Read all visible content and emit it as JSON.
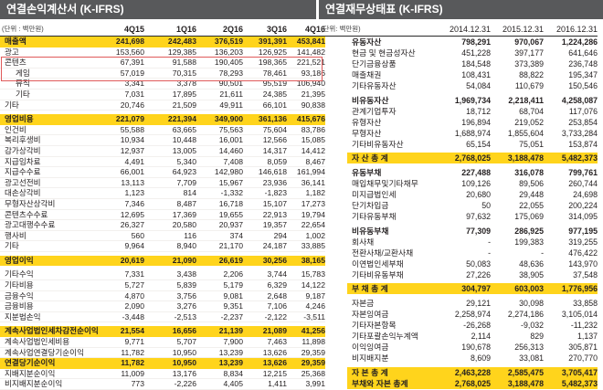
{
  "colors": {
    "header_bar": "#58595b",
    "highlight_row": "#ffd41c",
    "box_border": "#e05a5a",
    "text": "#231f20"
  },
  "income_statement": {
    "title": "연결손익계산서 (K-IFRS)",
    "unit": "(단위 : 백만원)",
    "columns": [
      "4Q15",
      "1Q16",
      "2Q16",
      "3Q16",
      "4Q16"
    ],
    "rows": [
      {
        "label": "매출액",
        "values": [
          "241,698",
          "242,483",
          "376,519",
          "391,391",
          "453,841"
        ],
        "highlight": true
      },
      {
        "label": "광고",
        "values": [
          "153,560",
          "129,385",
          "136,203",
          "126,925",
          "141,482"
        ]
      },
      {
        "label": "콘텐츠",
        "values": [
          "67,391",
          "91,588",
          "190,405",
          "198,365",
          "221,521"
        ],
        "boxed": true
      },
      {
        "label": "게임",
        "values": [
          "57,019",
          "70,315",
          "78,293",
          "78,461",
          "93,186"
        ],
        "indent": true,
        "boxed": true
      },
      {
        "label": "뮤직",
        "values": [
          "3,341",
          "3,378",
          "90,501",
          "95,519",
          "106,940"
        ],
        "indent": true
      },
      {
        "label": "기타",
        "values": [
          "7,031",
          "17,895",
          "21,611",
          "24,385",
          "21,395"
        ],
        "indent": true
      },
      {
        "label": "기타",
        "values": [
          "20,746",
          "21,509",
          "49,911",
          "66,101",
          "90,838"
        ]
      },
      {
        "label": "영업비용",
        "values": [
          "221,079",
          "221,394",
          "349,900",
          "361,136",
          "415,676"
        ],
        "highlight": true,
        "gap": true
      },
      {
        "label": "인건비",
        "values": [
          "55,588",
          "63,665",
          "75,563",
          "75,604",
          "83,786"
        ]
      },
      {
        "label": "복리후생비",
        "values": [
          "10,934",
          "10,448",
          "16,001",
          "12,566",
          "15,085"
        ]
      },
      {
        "label": "감가상각비",
        "values": [
          "12,937",
          "13,005",
          "14,460",
          "14,317",
          "14,412"
        ]
      },
      {
        "label": "지급임차료",
        "values": [
          "4,491",
          "5,340",
          "7,408",
          "8,059",
          "8,467"
        ]
      },
      {
        "label": "지급수수료",
        "values": [
          "66,001",
          "64,923",
          "142,980",
          "146,618",
          "161,994"
        ]
      },
      {
        "label": "광고선전비",
        "values": [
          "13,113",
          "7,709",
          "15,967",
          "23,936",
          "36,141"
        ]
      },
      {
        "label": "대손상각비",
        "values": [
          "1,123",
          "814",
          "-1,332",
          "-1,823",
          "1,182"
        ]
      },
      {
        "label": "무형자산상각비",
        "values": [
          "7,346",
          "8,487",
          "16,718",
          "15,107",
          "17,273"
        ]
      },
      {
        "label": "콘텐츠수수료",
        "values": [
          "12,695",
          "17,369",
          "19,655",
          "22,913",
          "19,794"
        ]
      },
      {
        "label": "광고대행수수료",
        "values": [
          "26,327",
          "20,580",
          "20,937",
          "19,357",
          "22,654"
        ]
      },
      {
        "label": "행사비",
        "values": [
          "560",
          "116",
          "374",
          "294",
          "1,002"
        ]
      },
      {
        "label": "기타",
        "values": [
          "9,964",
          "8,940",
          "21,170",
          "24,187",
          "33,885"
        ]
      },
      {
        "label": "영업이익",
        "values": [
          "20,619",
          "21,090",
          "26,619",
          "30,256",
          "38,165"
        ],
        "highlight": true,
        "gap": true
      },
      {
        "label": "기타수익",
        "values": [
          "7,331",
          "3,438",
          "2,206",
          "3,744",
          "15,783"
        ],
        "gap": true
      },
      {
        "label": "기타비용",
        "values": [
          "5,727",
          "5,839",
          "5,179",
          "6,329",
          "14,122"
        ]
      },
      {
        "label": "금융수익",
        "values": [
          "4,870",
          "3,756",
          "9,081",
          "2,648",
          "9,187"
        ]
      },
      {
        "label": "금융비용",
        "values": [
          "2,090",
          "3,276",
          "9,351",
          "7,106",
          "4,246"
        ]
      },
      {
        "label": "지분법손익",
        "values": [
          "-3,448",
          "-2,513",
          "-2,237",
          "-2,122",
          "-3,511"
        ]
      },
      {
        "label": "계속사업법인세차감전순이익",
        "values": [
          "21,554",
          "16,656",
          "21,139",
          "21,089",
          "41,256"
        ],
        "highlight": true,
        "gap": true
      },
      {
        "label": "계속사업법인세비용",
        "values": [
          "9,771",
          "5,707",
          "7,900",
          "7,463",
          "11,898"
        ]
      },
      {
        "label": "계속사업연결당기순이익",
        "values": [
          "11,782",
          "10,950",
          "13,239",
          "13,626",
          "29,359"
        ]
      },
      {
        "label": "연결당기순이익",
        "values": [
          "11,782",
          "10,950",
          "13,239",
          "13,626",
          "29,359"
        ],
        "highlight": true
      },
      {
        "label": "지배지분순이익",
        "values": [
          "11,009",
          "13,176",
          "8,834",
          "12,215",
          "25,368"
        ]
      },
      {
        "label": "비지배지분순이익",
        "values": [
          "773",
          "-2,226",
          "4,405",
          "1,411",
          "3,991"
        ]
      }
    ]
  },
  "balance_sheet": {
    "title": "연결재무상태표 (K-IFRS)",
    "unit": "(단위: 백만원)",
    "columns": [
      "2014.12.31",
      "2015.12.31",
      "2016.12.31"
    ],
    "rows": [
      {
        "label": "유동자산",
        "values": [
          "798,291",
          "970,067",
          "1,224,286"
        ],
        "bold": true
      },
      {
        "label": "현금 및 현금성자산",
        "values": [
          "451,228",
          "397,177",
          "641,646"
        ]
      },
      {
        "label": "단기금융상품",
        "values": [
          "184,548",
          "373,389",
          "236,748"
        ]
      },
      {
        "label": "매출채권",
        "values": [
          "108,431",
          "88,822",
          "195,347"
        ]
      },
      {
        "label": "기타유동자산",
        "values": [
          "54,084",
          "110,679",
          "150,546"
        ]
      },
      {
        "label": "비유동자산",
        "values": [
          "1,969,734",
          "2,218,411",
          "4,258,087"
        ],
        "bold": true,
        "gap": true
      },
      {
        "label": "관계기업투자",
        "values": [
          "18,712",
          "68,704",
          "117,076"
        ]
      },
      {
        "label": "유형자산",
        "values": [
          "196,894",
          "219,052",
          "253,854"
        ]
      },
      {
        "label": "무형자산",
        "values": [
          "1,688,974",
          "1,855,604",
          "3,733,284"
        ]
      },
      {
        "label": "기타비유동자산",
        "values": [
          "65,154",
          "75,051",
          "153,874"
        ]
      },
      {
        "label": "자 산 총 계",
        "values": [
          "2,768,025",
          "3,188,478",
          "5,482,373"
        ],
        "highlight": true,
        "gap_sm": true
      },
      {
        "label": "유동부채",
        "values": [
          "227,488",
          "316,078",
          "799,761"
        ],
        "bold": true,
        "gap": true
      },
      {
        "label": "매입채무및기타채무",
        "values": [
          "109,126",
          "89,506",
          "260,744"
        ]
      },
      {
        "label": "미지급법인세",
        "values": [
          "20,680",
          "29,448",
          "24,698"
        ]
      },
      {
        "label": "단기차입금",
        "values": [
          "50",
          "22,055",
          "200,224"
        ]
      },
      {
        "label": "기타유동부채",
        "values": [
          "97,632",
          "175,069",
          "314,095"
        ]
      },
      {
        "label": "비유동부채",
        "values": [
          "77,309",
          "286,925",
          "977,195"
        ],
        "bold": true,
        "gap": true
      },
      {
        "label": "회사채",
        "values": [
          "-",
          "199,383",
          "319,255"
        ]
      },
      {
        "label": "전환사채/교환사채",
        "values": [
          "-",
          "-",
          "476,422"
        ]
      },
      {
        "label": "이연법인세부채",
        "values": [
          "50,083",
          "48,636",
          "143,970"
        ]
      },
      {
        "label": "기타비유동부채",
        "values": [
          "27,226",
          "38,905",
          "37,548"
        ]
      },
      {
        "label": "부 채 총 계",
        "values": [
          "304,797",
          "603,003",
          "1,776,956"
        ],
        "highlight": true,
        "gap_sm": true
      },
      {
        "label": "자본금",
        "values": [
          "29,121",
          "30,098",
          "33,858"
        ],
        "gap": true
      },
      {
        "label": "자본잉여금",
        "values": [
          "2,258,974",
          "2,274,186",
          "3,105,014"
        ]
      },
      {
        "label": "기타자본항목",
        "values": [
          "-26,268",
          "-9,032",
          "-11,232"
        ]
      },
      {
        "label": "기타포괄손익누계액",
        "values": [
          "2,114",
          "829",
          "1,137"
        ]
      },
      {
        "label": "이익잉여금",
        "values": [
          "190,678",
          "256,313",
          "305,871"
        ]
      },
      {
        "label": "비지배지분",
        "values": [
          "8,609",
          "33,081",
          "270,770"
        ]
      },
      {
        "label": "자 본 총 계",
        "values": [
          "2,463,228",
          "2,585,475",
          "3,705,417"
        ],
        "highlight": true,
        "gap": true
      },
      {
        "label": "부채와 자본 총계",
        "values": [
          "2,768,025",
          "3,188,478",
          "5,482,373"
        ],
        "highlight": true
      }
    ]
  }
}
